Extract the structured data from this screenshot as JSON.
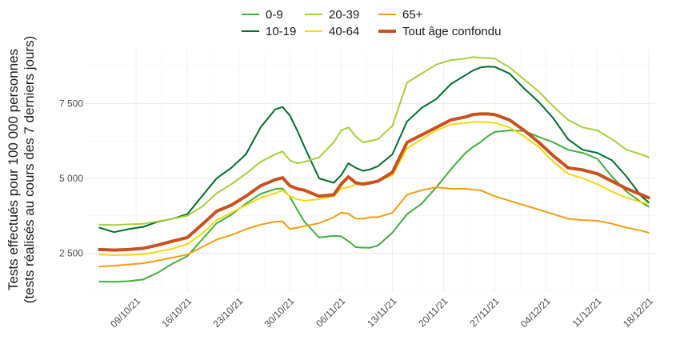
{
  "chart_data": {
    "type": "line",
    "xlabel": "",
    "ylabel": "Tests effectués pour 100 000 personnes",
    "ylabel2": "(tests réalisés au cours des 7 derniers jours)",
    "x_start": "2021-10-04",
    "x_ticks": [
      "09/10/21",
      "16/10/21",
      "23/10/21",
      "30/10/21",
      "06/11/21",
      "13/11/21",
      "20/11/21",
      "27/11/21",
      "04/12/21",
      "11/12/21",
      "18/12/21"
    ],
    "y_ticks": [
      2500,
      5000,
      7500
    ],
    "y_tick_labels": [
      "2 500",
      "5 000",
      "7 500"
    ],
    "ylim": [
      1200,
      9300
    ],
    "grid": true,
    "legend_position": "top",
    "x": [
      0,
      2,
      4,
      6,
      8,
      10,
      12,
      14,
      16,
      18,
      20,
      22,
      24,
      25,
      26,
      27,
      28,
      30,
      32,
      33,
      34,
      35,
      36,
      37,
      38,
      40,
      42,
      44,
      46,
      48,
      50,
      51,
      52,
      53,
      54,
      56,
      58,
      60,
      62,
      64,
      66,
      68,
      70,
      72,
      74,
      75
    ],
    "series": [
      {
        "name": "0-9",
        "color": "#41ae3e",
        "width": 2,
        "values": [
          1550,
          1540,
          1560,
          1620,
          1850,
          2150,
          2400,
          2950,
          3500,
          3780,
          4150,
          4480,
          4640,
          4660,
          4380,
          3950,
          3550,
          3020,
          3080,
          3060,
          2900,
          2700,
          2680,
          2680,
          2750,
          3180,
          3800,
          4150,
          4700,
          5300,
          5850,
          6050,
          6200,
          6400,
          6550,
          6600,
          6580,
          6380,
          6200,
          5950,
          5850,
          5650,
          5050,
          4550,
          4200,
          4050
        ]
      },
      {
        "name": "10-19",
        "color": "#006d2c",
        "width": 2,
        "values": [
          3350,
          3200,
          3300,
          3380,
          3550,
          3650,
          3800,
          4400,
          5000,
          5350,
          5800,
          6700,
          7300,
          7380,
          7100,
          6600,
          6050,
          5000,
          4850,
          5100,
          5500,
          5350,
          5250,
          5300,
          5400,
          5800,
          6900,
          7350,
          7650,
          8150,
          8450,
          8600,
          8700,
          8730,
          8720,
          8500,
          8000,
          7550,
          7000,
          6300,
          5950,
          5850,
          5600,
          5050,
          4400,
          4200
        ]
      },
      {
        "name": "20-39",
        "color": "#a6cf3c",
        "width": 2,
        "values": [
          3450,
          3440,
          3460,
          3480,
          3560,
          3650,
          3750,
          4050,
          4500,
          4800,
          5150,
          5550,
          5800,
          5900,
          5600,
          5500,
          5550,
          5700,
          6200,
          6600,
          6700,
          6400,
          6200,
          6250,
          6300,
          6750,
          8200,
          8500,
          8800,
          8950,
          9000,
          9050,
          9030,
          9020,
          9000,
          8700,
          8300,
          7900,
          7400,
          6950,
          6700,
          6600,
          6300,
          5950,
          5800,
          5700
        ]
      },
      {
        "name": "40-64",
        "color": "#f5d80f",
        "width": 2,
        "values": [
          2450,
          2430,
          2440,
          2460,
          2550,
          2650,
          2800,
          3150,
          3600,
          3850,
          4100,
          4350,
          4500,
          4600,
          4400,
          4300,
          4250,
          4300,
          4400,
          4650,
          4700,
          4800,
          4850,
          4880,
          4900,
          5100,
          6000,
          6300,
          6600,
          6800,
          6850,
          6880,
          6880,
          6870,
          6850,
          6700,
          6400,
          6050,
          5550,
          5150,
          5000,
          4800,
          4550,
          4350,
          4200,
          4150
        ]
      },
      {
        "name": "65+",
        "color": "#f39c12",
        "width": 2,
        "values": [
          2050,
          2080,
          2120,
          2160,
          2250,
          2350,
          2450,
          2700,
          2950,
          3100,
          3300,
          3450,
          3550,
          3560,
          3300,
          3350,
          3400,
          3500,
          3700,
          3850,
          3820,
          3650,
          3650,
          3700,
          3700,
          3850,
          4450,
          4600,
          4700,
          4650,
          4650,
          4620,
          4600,
          4500,
          4400,
          4250,
          4100,
          3950,
          3800,
          3650,
          3600,
          3580,
          3480,
          3350,
          3250,
          3180
        ]
      },
      {
        "name": "Tout âge confondu",
        "color": "#c8511e",
        "width": 4,
        "values": [
          2620,
          2600,
          2620,
          2660,
          2770,
          2900,
          3020,
          3450,
          3900,
          4100,
          4400,
          4750,
          4950,
          5020,
          4750,
          4650,
          4600,
          4400,
          4450,
          4800,
          5050,
          4850,
          4800,
          4850,
          4900,
          5200,
          6200,
          6450,
          6700,
          6950,
          7050,
          7130,
          7150,
          7150,
          7130,
          6950,
          6600,
          6200,
          5750,
          5350,
          5280,
          5150,
          4900,
          4650,
          4450,
          4350
        ]
      }
    ]
  }
}
